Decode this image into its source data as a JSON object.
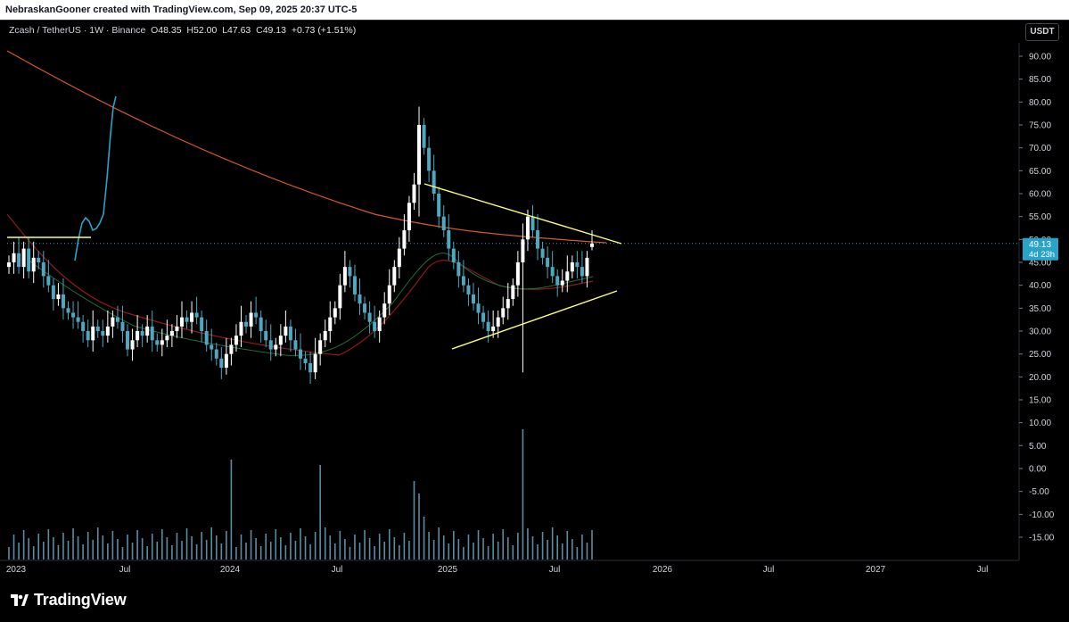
{
  "header": {
    "attribution": "NebraskanGooner created with TradingView.com, Sep 09, 2025 20:37 UTC-5"
  },
  "legend": {
    "symbol": "Zcash / TetherUS · 1W · Binance",
    "open_label": "O",
    "open": "48.35",
    "high_label": "H",
    "high": "52.00",
    "low_label": "L",
    "low": "47.63",
    "close_label": "C",
    "close": "49.13",
    "change": "+0.73 (+1.51%)"
  },
  "currency_button": "USDT",
  "price_tag": {
    "price": "49.13",
    "countdown": "4d 23h"
  },
  "footer": {
    "brand": "TradingView"
  },
  "colors": {
    "up": "#26a69a",
    "candle": "#ffffff",
    "bear": "#4fa8c0",
    "trendline": "#ffff80",
    "ma_long": "#d45a2a",
    "ma_short": "#8b1a1a",
    "ma_green": "#1e6e3a",
    "rsi_line": "#2aa3c8",
    "volume": "#6aa6c0"
  },
  "chart_data": {
    "type": "candlestick",
    "title": "",
    "xlabel": "",
    "ylabel": "",
    "y_axis_labels": [
      "90.00",
      "85.00",
      "80.00",
      "75.00",
      "70.00",
      "65.00",
      "60.00",
      "55.00",
      "50.00",
      "45.00",
      "40.00",
      "35.00",
      "30.00",
      "25.00",
      "20.00",
      "15.00",
      "10.00",
      "5.00",
      "0.00",
      "-5.00",
      "-10.00",
      "-15.00"
    ],
    "x_axis_labels": [
      "2023",
      "Jul",
      "2024",
      "Jul",
      "2025",
      "Jul",
      "2026",
      "Jul",
      "2027",
      "Jul"
    ],
    "ylim": [
      -20,
      92
    ],
    "grid": false,
    "last_price": 49.13,
    "weekly_closes_approx": [
      45,
      47,
      44,
      48,
      43,
      46,
      45,
      42,
      40,
      37,
      38,
      35,
      34,
      33,
      32,
      30,
      28,
      31,
      30,
      29,
      31,
      33,
      32,
      30,
      26,
      28,
      30,
      29,
      31,
      28,
      27,
      28,
      29,
      30,
      31,
      33,
      32,
      34,
      33,
      30,
      27,
      26,
      24,
      22,
      25,
      27,
      29,
      32,
      31,
      34,
      33,
      30,
      28,
      26,
      27,
      29,
      31,
      28,
      26,
      24,
      23,
      21,
      25,
      28,
      30,
      33,
      35,
      40,
      44,
      42,
      38,
      36,
      34,
      32,
      30,
      33,
      36,
      40,
      44,
      48,
      52,
      58,
      62,
      75,
      70,
      65,
      60,
      55,
      52,
      48,
      45,
      42,
      40,
      38,
      36,
      34,
      32,
      30,
      31,
      33,
      35,
      37,
      40,
      45,
      50,
      55,
      52,
      48,
      46,
      44,
      42,
      40,
      41,
      43,
      45,
      44,
      42,
      46,
      49
    ]
  }
}
